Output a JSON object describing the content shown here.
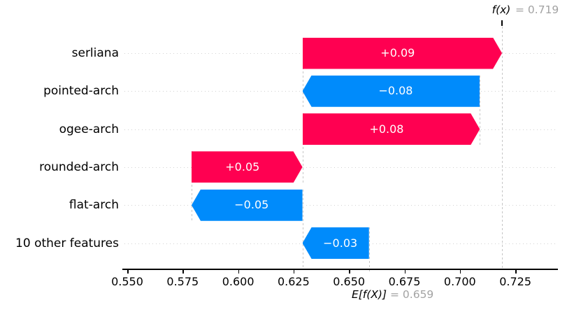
{
  "annotations": {
    "fx_label": "f(x)",
    "fx_value_text": "= 0.719",
    "efx_label": "E[f(X)]",
    "efx_value_text": "= 0.659"
  },
  "chart_data": {
    "type": "bar",
    "subtype": "shap-waterfall",
    "orientation": "horizontal",
    "title": "",
    "base_value": 0.659,
    "output_value": 0.719,
    "features": [
      {
        "label": "serliana",
        "value": 0.09,
        "display": "+0.09",
        "start": 0.629,
        "end": 0.719
      },
      {
        "label": "pointed-arch",
        "value": -0.08,
        "display": "−0.08",
        "start": 0.709,
        "end": 0.629
      },
      {
        "label": "ogee-arch",
        "value": 0.08,
        "display": "+0.08",
        "start": 0.629,
        "end": 0.709
      },
      {
        "label": "rounded-arch",
        "value": 0.05,
        "display": "+0.05",
        "start": 0.579,
        "end": 0.629
      },
      {
        "label": "flat-arch",
        "value": -0.05,
        "display": "−0.05",
        "start": 0.629,
        "end": 0.579
      },
      {
        "label": "10 other features",
        "value": -0.03,
        "display": "−0.03",
        "start": 0.659,
        "end": 0.629
      }
    ],
    "x_ticks": [
      0.55,
      0.575,
      0.6,
      0.625,
      0.65,
      0.675,
      0.7,
      0.725
    ],
    "x_tick_labels": [
      "0.550",
      "0.575",
      "0.600",
      "0.625",
      "0.650",
      "0.675",
      "0.700",
      "0.725"
    ],
    "grid": "horizontal-dotted-per-row",
    "legend": "none",
    "colors": {
      "positive": "#ff0051",
      "negative": "#008bfb",
      "bar_text": "#ffffff",
      "muted_annotation": "#a3a3a3",
      "gridline": "#d2d2d2",
      "connector": "#c6c6c6",
      "axis": "#000000"
    }
  }
}
